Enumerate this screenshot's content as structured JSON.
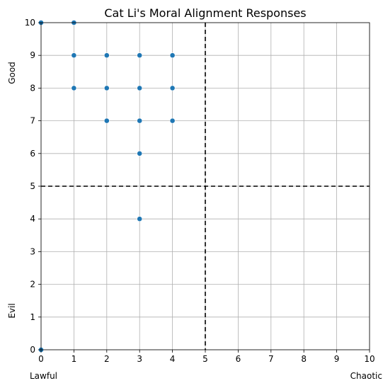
{
  "chart_data": {
    "type": "scatter",
    "title": "Cat Li's Moral Alignment Responses",
    "xlabel": "",
    "ylabel": "",
    "xlim": [
      0,
      10
    ],
    "ylim": [
      0,
      10
    ],
    "xticks": [
      0,
      1,
      2,
      3,
      4,
      5,
      6,
      7,
      8,
      9,
      10
    ],
    "yticks": [
      0,
      1,
      2,
      3,
      4,
      5,
      6,
      7,
      8,
      9,
      10
    ],
    "x_end_labels": {
      "low": "Lawful",
      "high": "Chaotic"
    },
    "y_end_labels": {
      "low": "Evil",
      "high": "Good"
    },
    "reference_lines": {
      "x": 5,
      "y": 5,
      "style": "dashed",
      "color": "#000000"
    },
    "grid": true,
    "marker_color": "#1f77b4",
    "points": [
      {
        "x": 0,
        "y": 10
      },
      {
        "x": 0,
        "y": 0
      },
      {
        "x": 1,
        "y": 10
      },
      {
        "x": 1,
        "y": 9
      },
      {
        "x": 1,
        "y": 8
      },
      {
        "x": 2,
        "y": 9
      },
      {
        "x": 2,
        "y": 8
      },
      {
        "x": 2,
        "y": 7
      },
      {
        "x": 3,
        "y": 9
      },
      {
        "x": 3,
        "y": 8
      },
      {
        "x": 3,
        "y": 7
      },
      {
        "x": 3,
        "y": 6
      },
      {
        "x": 3,
        "y": 4
      },
      {
        "x": 4,
        "y": 9
      },
      {
        "x": 4,
        "y": 8
      },
      {
        "x": 4,
        "y": 7
      }
    ]
  }
}
